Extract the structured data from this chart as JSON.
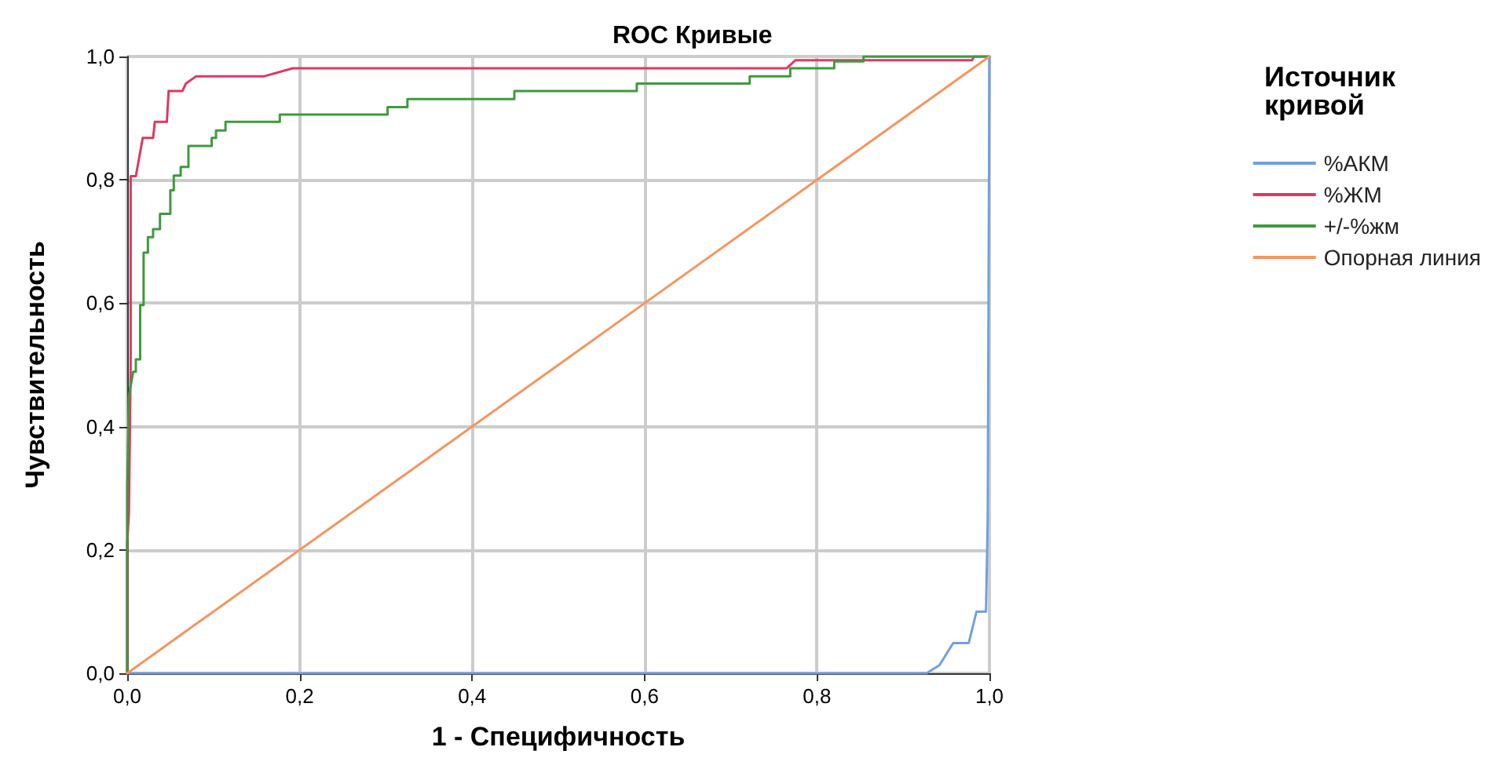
{
  "chart_data": {
    "type": "line",
    "title": "ROC Кривые",
    "xlabel": "1 - Специфичность",
    "ylabel": "Чувствительность",
    "legend_title": "Источник кривой",
    "legend": "right",
    "grid": true,
    "marker": "none",
    "line_style": "solid",
    "xlim": [
      0,
      1
    ],
    "ylim": [
      0,
      1
    ],
    "xticks": [
      {
        "value": 0,
        "label": "0,0"
      },
      {
        "value": 0.2,
        "label": "0,2"
      },
      {
        "value": 0.4,
        "label": "0,4"
      },
      {
        "value": 0.6,
        "label": "0,6"
      },
      {
        "value": 0.8,
        "label": "0,8"
      },
      {
        "value": 1,
        "label": "1,0"
      }
    ],
    "yticks": [
      {
        "value": 0,
        "label": "0,0"
      },
      {
        "value": 0.2,
        "label": "0,2"
      },
      {
        "value": 0.4,
        "label": "0,4"
      },
      {
        "value": 0.6,
        "label": "0,6"
      },
      {
        "value": 0.8,
        "label": "0,8"
      },
      {
        "value": 1,
        "label": "1,0"
      }
    ],
    "series": [
      {
        "name": "%АКМ",
        "color": "#6fa0e0",
        "x": [
          0,
          0.927,
          0.942,
          0.958,
          0.976,
          0.985,
          0.996,
          0.998,
          1
        ],
        "values": [
          0,
          0,
          0.013,
          0.049,
          0.049,
          0.1,
          0.1,
          0.25,
          1
        ]
      },
      {
        "name": "%ЖМ",
        "color": "#e0385f",
        "x": [
          0,
          0,
          0.002,
          0.004,
          0.004,
          0.01,
          0.018,
          0.03,
          0.032,
          0.046,
          0.048,
          0.064,
          0.068,
          0.08,
          0.089,
          0.159,
          0.192,
          0.765,
          0.775,
          0.98,
          0.982,
          1
        ],
        "values": [
          0,
          0.21,
          0.26,
          0.5,
          0.806,
          0.806,
          0.868,
          0.868,
          0.894,
          0.894,
          0.944,
          0.944,
          0.956,
          0.968,
          0.968,
          0.968,
          0.981,
          0.981,
          0.994,
          0.994,
          1,
          1
        ]
      },
      {
        "name": "+/-%жм",
        "color": "#3e9a3e",
        "x": [
          0,
          0,
          0.002,
          0.007,
          0.01,
          0.01,
          0.015,
          0.015,
          0.019,
          0.019,
          0.024,
          0.024,
          0.03,
          0.03,
          0.038,
          0.038,
          0.05,
          0.05,
          0.054,
          0.054,
          0.062,
          0.062,
          0.071,
          0.071,
          0.098,
          0.098,
          0.103,
          0.103,
          0.114,
          0.114,
          0.177,
          0.177,
          0.302,
          0.302,
          0.325,
          0.325,
          0.449,
          0.449,
          0.591,
          0.591,
          0.722,
          0.722,
          0.769,
          0.769,
          0.82,
          0.82,
          0.854,
          0.854,
          1
        ],
        "values": [
          0,
          0.3,
          0.45,
          0.489,
          0.489,
          0.509,
          0.509,
          0.597,
          0.597,
          0.682,
          0.682,
          0.707,
          0.707,
          0.72,
          0.72,
          0.745,
          0.745,
          0.783,
          0.783,
          0.807,
          0.807,
          0.821,
          0.821,
          0.855,
          0.855,
          0.868,
          0.868,
          0.88,
          0.88,
          0.894,
          0.894,
          0.906,
          0.906,
          0.918,
          0.918,
          0.931,
          0.931,
          0.944,
          0.944,
          0.956,
          0.956,
          0.968,
          0.968,
          0.981,
          0.981,
          0.992,
          0.992,
          1,
          1
        ]
      },
      {
        "name": "Опорная линия",
        "color": "#f5955f",
        "x": [
          0,
          1
        ],
        "values": [
          0,
          1
        ]
      }
    ]
  }
}
